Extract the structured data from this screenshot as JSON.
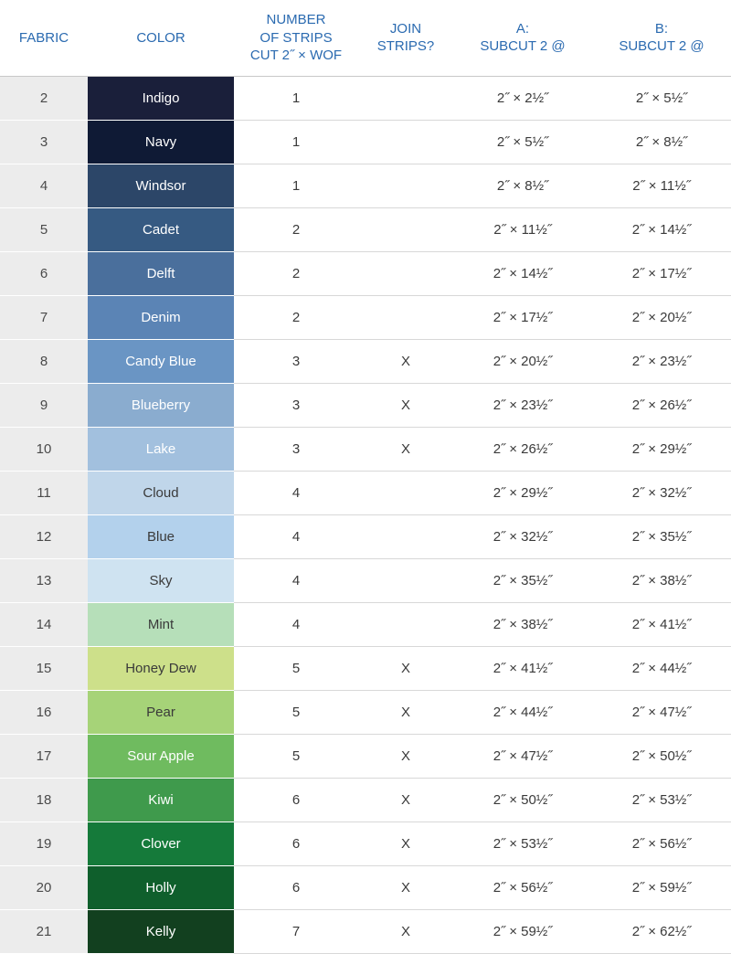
{
  "headers": {
    "fabric": "FABRIC",
    "color": "COLOR",
    "strips": "NUMBER\nOF STRIPS\nCUT 2˝ × WOF",
    "join": "JOIN\nSTRIPS?",
    "a": "A:\nSUBCUT 2 @",
    "b": "B:\nSUBCUT 2 @"
  },
  "header_color": "#2a6ab0",
  "fabric_col_bg": "#ececec",
  "border_color": "#d8d8d8",
  "rows": [
    {
      "fabric": "2",
      "color_name": "Indigo",
      "bg": "#1a1f3a",
      "fg": "#ffffff",
      "strips": "1",
      "join": "",
      "a": "2˝ × 2½˝",
      "b": "2˝ × 5½˝"
    },
    {
      "fabric": "3",
      "color_name": "Navy",
      "bg": "#0f1a35",
      "fg": "#ffffff",
      "strips": "1",
      "join": "",
      "a": "2˝ × 5½˝",
      "b": "2˝ × 8½˝"
    },
    {
      "fabric": "4",
      "color_name": "Windsor",
      "bg": "#2c4668",
      "fg": "#ffffff",
      "strips": "1",
      "join": "",
      "a": "2˝ × 8½˝",
      "b": "2˝ × 11½˝"
    },
    {
      "fabric": "5",
      "color_name": "Cadet",
      "bg": "#365a82",
      "fg": "#ffffff",
      "strips": "2",
      "join": "",
      "a": "2˝ × 11½˝",
      "b": "2˝ × 14½˝"
    },
    {
      "fabric": "6",
      "color_name": "Delft",
      "bg": "#4a6f9c",
      "fg": "#ffffff",
      "strips": "2",
      "join": "",
      "a": "2˝ × 14½˝",
      "b": "2˝ × 17½˝"
    },
    {
      "fabric": "7",
      "color_name": "Denim",
      "bg": "#5b84b5",
      "fg": "#ffffff",
      "strips": "2",
      "join": "",
      "a": "2˝ × 17½˝",
      "b": "2˝ × 20½˝"
    },
    {
      "fabric": "8",
      "color_name": "Candy Blue",
      "bg": "#6a95c4",
      "fg": "#ffffff",
      "strips": "3",
      "join": "X",
      "a": "2˝ × 20½˝",
      "b": "2˝ × 23½˝"
    },
    {
      "fabric": "9",
      "color_name": "Blueberry",
      "bg": "#8aaccf",
      "fg": "#ffffff",
      "strips": "3",
      "join": "X",
      "a": "2˝ × 23½˝",
      "b": "2˝ × 26½˝"
    },
    {
      "fabric": "10",
      "color_name": "Lake",
      "bg": "#a2c0de",
      "fg": "#ffffff",
      "strips": "3",
      "join": "X",
      "a": "2˝ × 26½˝",
      "b": "2˝ × 29½˝"
    },
    {
      "fabric": "11",
      "color_name": "Cloud",
      "bg": "#c0d6ea",
      "fg": "#3a3a3a",
      "strips": "4",
      "join": "",
      "a": "2˝ × 29½˝",
      "b": "2˝ × 32½˝"
    },
    {
      "fabric": "12",
      "color_name": "Blue",
      "bg": "#b3d1ec",
      "fg": "#3a3a3a",
      "strips": "4",
      "join": "",
      "a": "2˝ × 32½˝",
      "b": "2˝ × 35½˝"
    },
    {
      "fabric": "13",
      "color_name": "Sky",
      "bg": "#cfe3f1",
      "fg": "#3a3a3a",
      "strips": "4",
      "join": "",
      "a": "2˝ × 35½˝",
      "b": "2˝ × 38½˝"
    },
    {
      "fabric": "14",
      "color_name": "Mint",
      "bg": "#b6dfb9",
      "fg": "#3a3a3a",
      "strips": "4",
      "join": "",
      "a": "2˝ × 38½˝",
      "b": "2˝ × 41½˝"
    },
    {
      "fabric": "15",
      "color_name": "Honey Dew",
      "bg": "#cde08a",
      "fg": "#3a3a3a",
      "strips": "5",
      "join": "X",
      "a": "2˝ × 41½˝",
      "b": "2˝ × 44½˝"
    },
    {
      "fabric": "16",
      "color_name": "Pear",
      "bg": "#a6d378",
      "fg": "#3a3a3a",
      "strips": "5",
      "join": "X",
      "a": "2˝ × 44½˝",
      "b": "2˝ × 47½˝"
    },
    {
      "fabric": "17",
      "color_name": "Sour Apple",
      "bg": "#6fbb5f",
      "fg": "#ffffff",
      "strips": "5",
      "join": "X",
      "a": "2˝ × 47½˝",
      "b": "2˝ × 50½˝"
    },
    {
      "fabric": "18",
      "color_name": "Kiwi",
      "bg": "#3f9a4c",
      "fg": "#ffffff",
      "strips": "6",
      "join": "X",
      "a": "2˝ × 50½˝",
      "b": "2˝ × 53½˝"
    },
    {
      "fabric": "19",
      "color_name": "Clover",
      "bg": "#157a3a",
      "fg": "#ffffff",
      "strips": "6",
      "join": "X",
      "a": "2˝ × 53½˝",
      "b": "2˝ × 56½˝"
    },
    {
      "fabric": "20",
      "color_name": "Holly",
      "bg": "#0f5f2c",
      "fg": "#ffffff",
      "strips": "6",
      "join": "X",
      "a": "2˝ × 56½˝",
      "b": "2˝ × 59½˝"
    },
    {
      "fabric": "21",
      "color_name": "Kelly",
      "bg": "#12401f",
      "fg": "#ffffff",
      "strips": "7",
      "join": "X",
      "a": "2˝ × 59½˝",
      "b": "2˝ × 62½˝"
    }
  ]
}
